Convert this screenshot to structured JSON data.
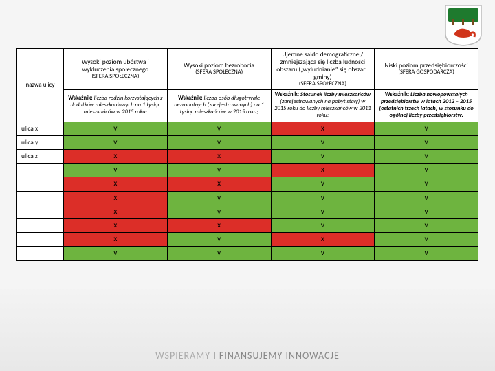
{
  "colors": {
    "green": "#6eb43f",
    "red": "#dc2e28",
    "page_bg": "#f5f5f5",
    "border": "#000000"
  },
  "crest": {
    "shield_fill": "#ffffff",
    "shield_border": "#cccccc",
    "tree_fill": "#1e7a2e",
    "animal_fill": "#d0341a"
  },
  "headers": {
    "col0": "nazwa ulicy",
    "col1": {
      "line1": "Wysoki poziom ubóstwa i wykluczenia społecznego",
      "line2": "(SFERA SPOŁECZNA)"
    },
    "col2": {
      "line1": "Wysoki poziom bezrobocia",
      "line2": "(SFERA SPOŁECZNA)"
    },
    "col3": {
      "line1": "Ujemne saldo demograficzne / zmniejszająca się liczba ludności obszaru („wyludnianie” się obszaru gminy)",
      "line2": "(SFERA SPOŁECZNA)"
    },
    "col4": {
      "line1": "Niski poziom przedsiębiorczości",
      "line2": "(SFERA GOSPODARCZA)"
    }
  },
  "indicators": {
    "col1": {
      "prefix": "Wskaźnik:",
      "body": "liczba rodzin korzystających z dodatków mieszkaniowych na 1 tysiąc mieszkańców w 2015 roku;"
    },
    "col2": {
      "prefix": "Wskaźnik:",
      "body": "liczba osób długotrwale bezrobotnych (zarejestrowanych) na 1 tysiąc mieszkańców w 2015 roku;"
    },
    "col3": {
      "prefix": "Wskaźnik:",
      "body1": "Stosunek liczby mieszkańców",
      "body2": "(zarejestrowanych na pobyt stały) w 2015 roku do liczby mieszkańców w 2011 roku;"
    },
    "col4": {
      "prefix": "Wskaźnik:",
      "body": "Liczba nowopowstałych przedsiębiorstw w latach 2012 – 2015 (ostatnich trzech latach) w stosunku do ogólnej liczby przedsiębiorstw."
    }
  },
  "rows": [
    {
      "label": "ulica x",
      "c": [
        "v",
        "v",
        "x",
        "v"
      ]
    },
    {
      "label": "ulica y",
      "c": [
        "v",
        "v",
        "v",
        "v"
      ]
    },
    {
      "label": "ulica z",
      "c": [
        "x",
        "x",
        "v",
        "v"
      ]
    },
    {
      "label": "",
      "c": [
        "v",
        "v",
        "x",
        "v"
      ]
    },
    {
      "label": "",
      "c": [
        "x",
        "x",
        "v",
        "v"
      ]
    },
    {
      "label": "",
      "c": [
        "x",
        "v",
        "v",
        "v"
      ]
    },
    {
      "label": "",
      "c": [
        "x",
        "v",
        "v",
        "v"
      ]
    },
    {
      "label": "",
      "c": [
        "x",
        "x",
        "v",
        "v"
      ]
    },
    {
      "label": "",
      "c": [
        "x",
        "v",
        "x",
        "v"
      ]
    },
    {
      "label": "",
      "c": [
        "v",
        "v",
        "v",
        "v"
      ]
    }
  ],
  "footer": {
    "part1": "WSPIERAMY ",
    "part2": "I FINANSUJEMY INNOWACJE"
  }
}
